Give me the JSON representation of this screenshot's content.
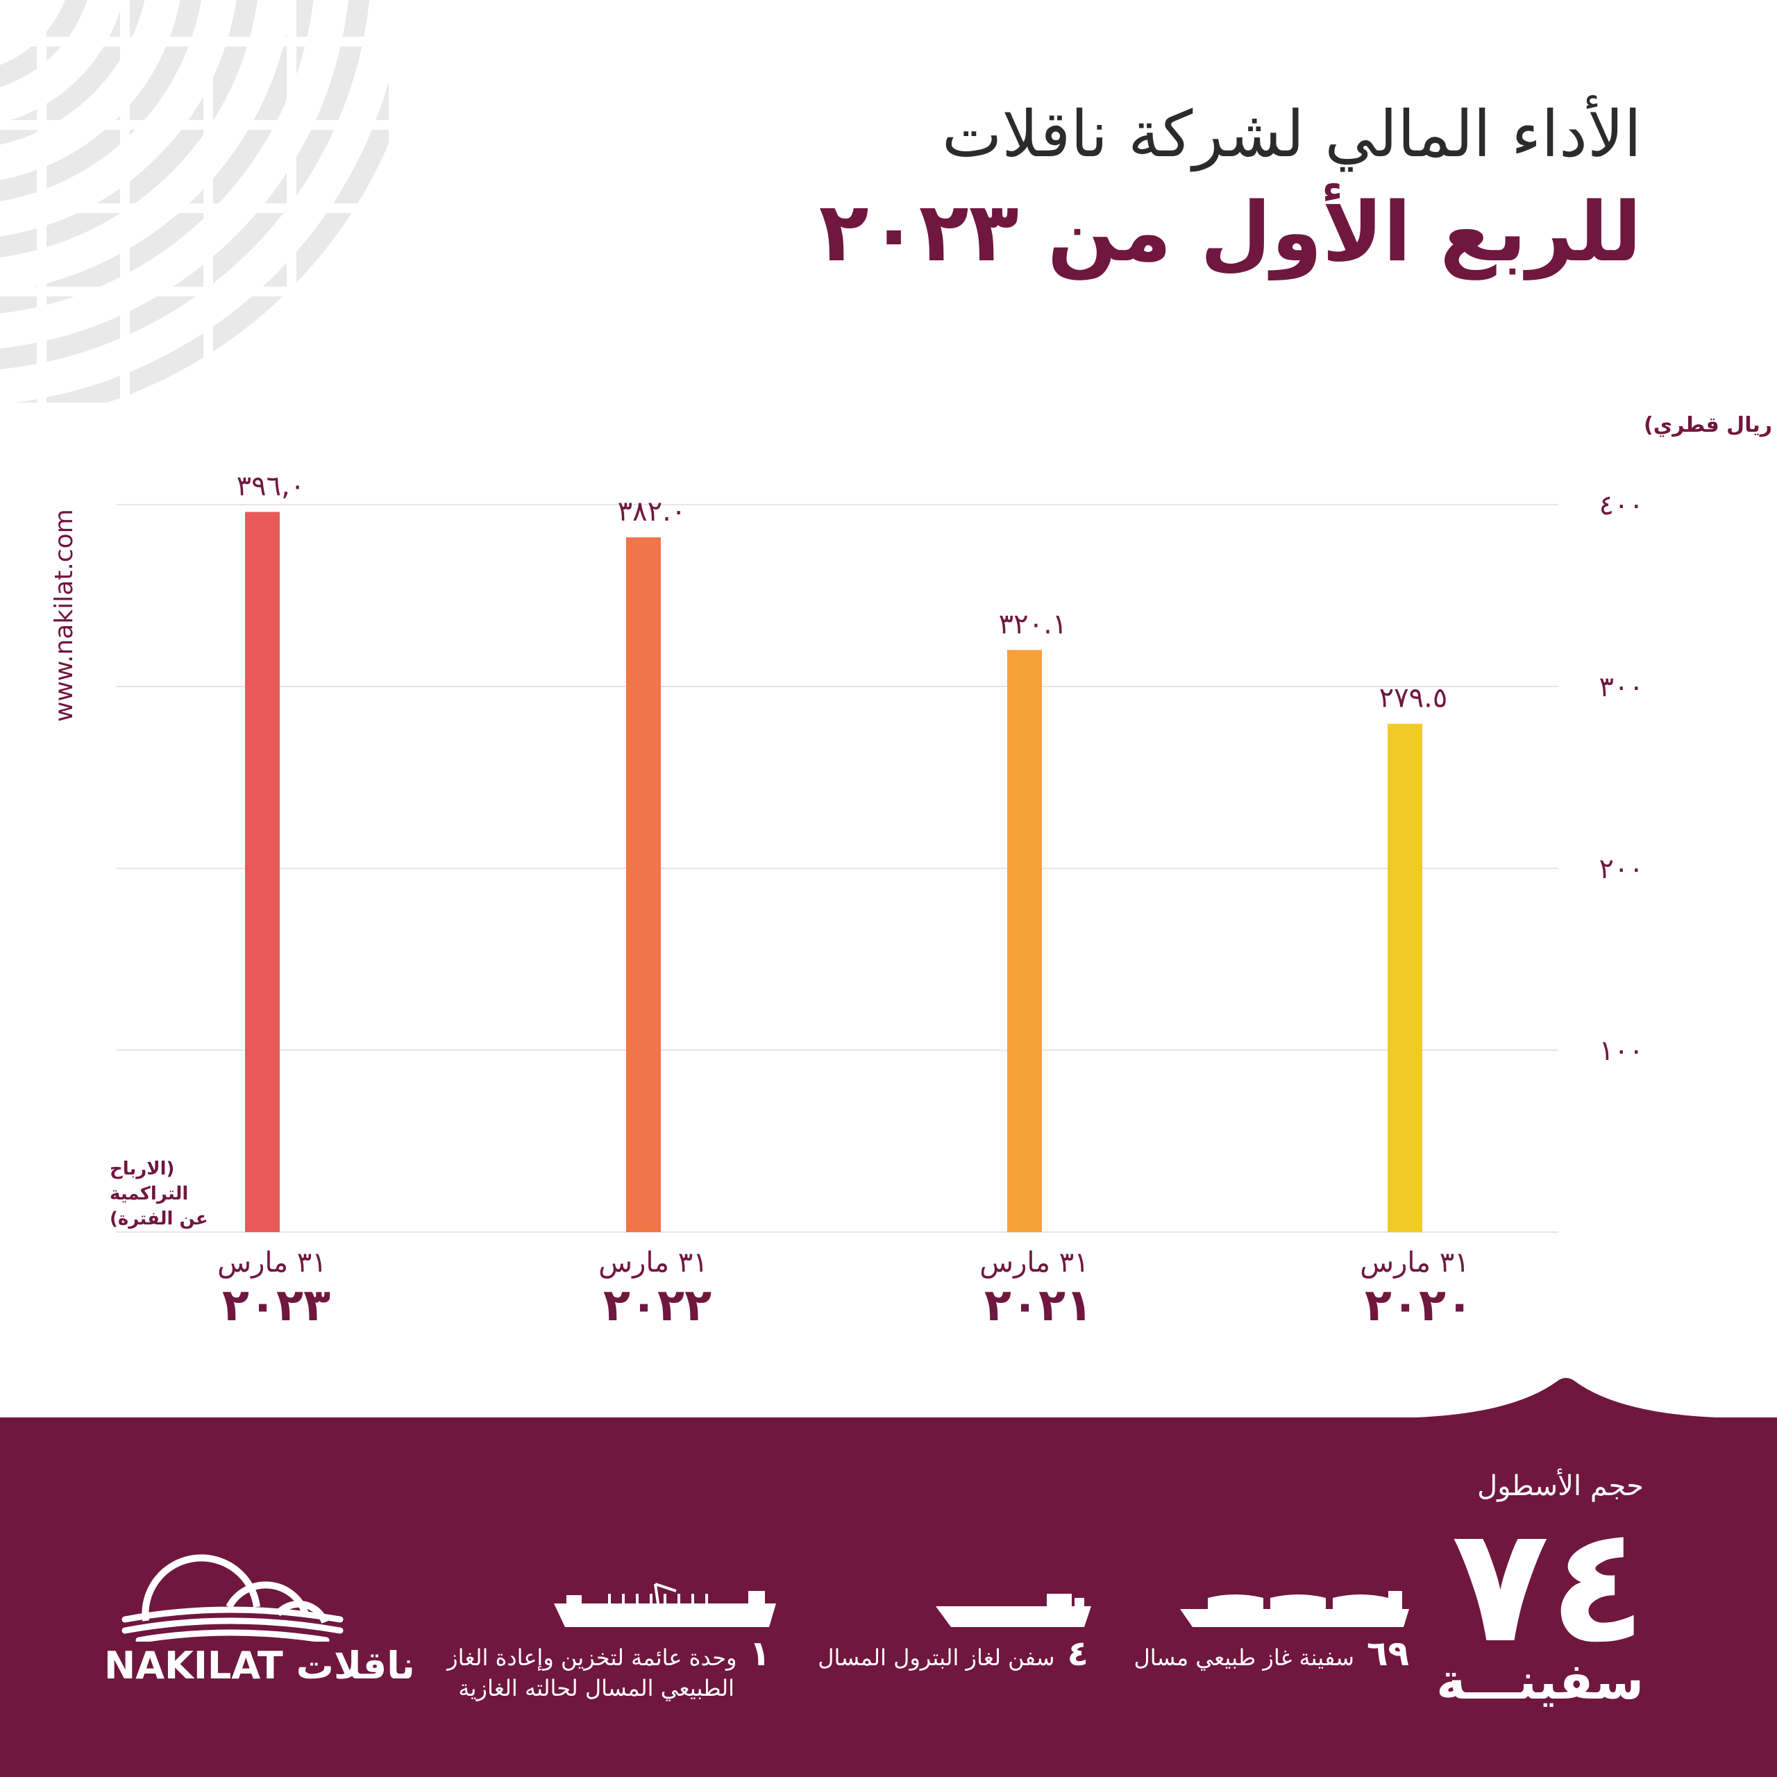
{
  "header": {
    "title_line1": "الأداء المالي لشركة ناقلات",
    "title_line2": "للربع الأول من ٢٠٢٣"
  },
  "website": "www.nakilat.com",
  "colors": {
    "brand": "#70173f",
    "bar_2023": "#e85a5a",
    "bar_2022": "#f07548",
    "bar_2021": "#f7a13a",
    "bar_2020": "#f2ca28",
    "grid": "#e6e6e6"
  },
  "chart_data": {
    "type": "bar",
    "ylabel": "(مليون ريال قطري)",
    "xlabel_note": [
      "(الارباح",
      "التراكمية",
      "عن الفترة)"
    ],
    "ylim": [
      0,
      400
    ],
    "yticks": [
      100,
      200,
      300,
      400
    ],
    "ytick_labels": [
      "١٠٠",
      "٢٠٠",
      "٣٠٠",
      "٤٠٠"
    ],
    "grid": true,
    "categories": [
      {
        "line1": "٣١ مارس",
        "line2": "٢٠٢٣"
      },
      {
        "line1": "٣١ مارس",
        "line2": "٢٠٢٢"
      },
      {
        "line1": "٣١ مارس",
        "line2": "٢٠٢١"
      },
      {
        "line1": "٣١ مارس",
        "line2": "٢٠٢٠"
      }
    ],
    "values": [
      396.0,
      382.0,
      320.1,
      279.5
    ],
    "value_labels": [
      "٣٩٦,٠",
      "٣٨٢.٠",
      "٣٢٠.١",
      "٢٧٩.٥"
    ]
  },
  "fleet": {
    "label": "حجم الأسطول",
    "total": "٧٤",
    "unit": "سفينـــة",
    "items": [
      {
        "count": "٦٩",
        "text": "سفينة غاز طبيعي مسال",
        "icon": "lng-carrier-icon"
      },
      {
        "count": "٤",
        "text": "سفن لغاز البترول المسال",
        "icon": "lpg-carrier-icon"
      },
      {
        "count": "١",
        "text": "وحدة عائمة لتخزين وإعادة الغاز",
        "text2": "الطبيعي المسال لحالته الغازية",
        "icon": "fsru-icon"
      }
    ]
  },
  "logo": {
    "text": "NAKILAT ناقلات"
  }
}
